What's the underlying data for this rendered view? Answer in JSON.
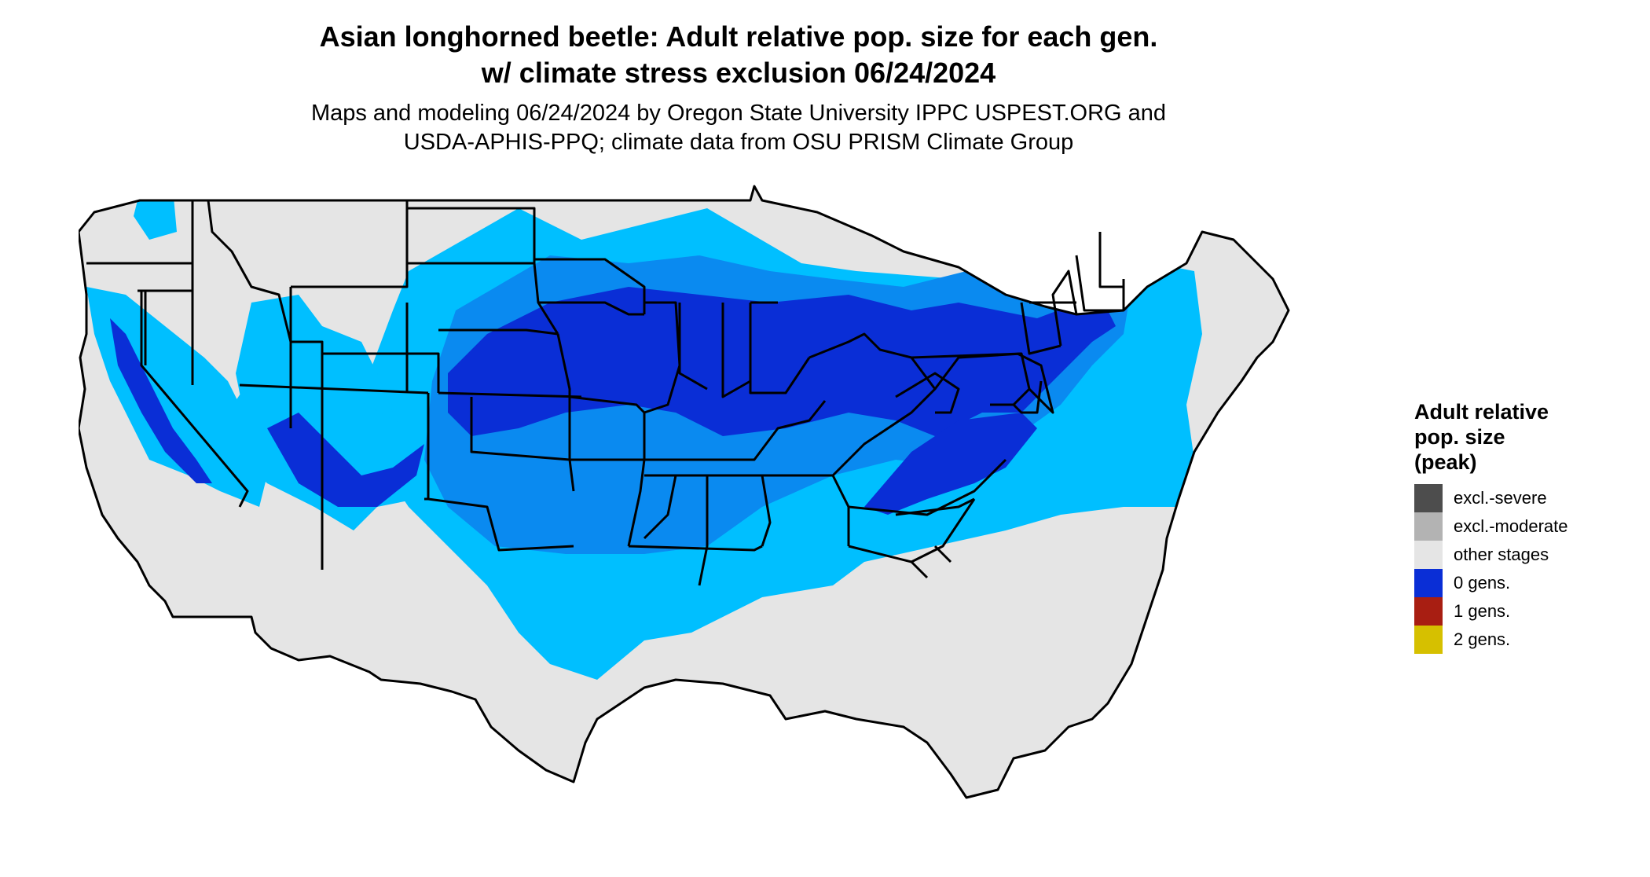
{
  "title": {
    "line1": "Asian longhorned beetle: Adult relative pop. size for each gen.",
    "line2": "w/ climate stress exclusion 06/24/2024"
  },
  "subtitle": {
    "line1": "Maps and modeling 06/24/2024 by Oregon State University IPPC USPEST.ORG and",
    "line2": "USDA-APHIS-PPQ; climate data from OSU PRISM Climate Group"
  },
  "legend": {
    "title_lines": [
      "Adult relative",
      "pop. size",
      "(peak)"
    ],
    "items": [
      {
        "label": "excl.-severe",
        "color": "#4d4d4d"
      },
      {
        "label": "excl.-moderate",
        "color": "#b3b3b3"
      },
      {
        "label": "other stages",
        "color": "#e5e5e5"
      },
      {
        "label": "0 gens.",
        "color": "#0a2ed6"
      },
      {
        "label": "1 gens.",
        "color": "#a81e12"
      },
      {
        "label": "2 gens.",
        "color": "#d6c000"
      }
    ]
  },
  "map": {
    "region": "contiguous-united-states",
    "shading_colors": {
      "base": "#e5e5e5",
      "light_blue": "#00bfff",
      "medium_blue": "#0a8af0",
      "dark_blue": "#0a2ed6",
      "border": "#000000"
    }
  }
}
